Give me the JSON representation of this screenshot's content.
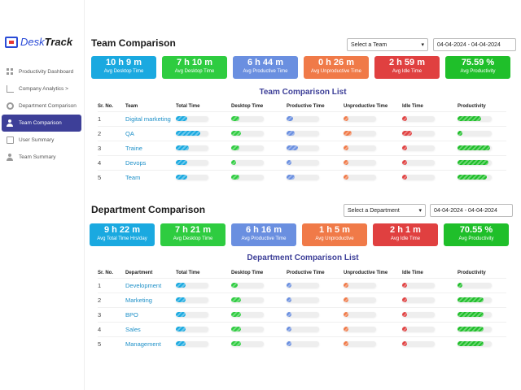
{
  "colors": {
    "blue": "#1aa9e0",
    "green": "#2ecc40",
    "periwinkle": "#6a8fe0",
    "orange": "#f07a48",
    "red": "#e04040",
    "lime": "#1fbf2a",
    "accent": "#3d3f98"
  },
  "sidebar": {
    "logo": {
      "brand": "Desk",
      "brand_bold": "Track"
    },
    "items": [
      {
        "label": "Productivity Dashboard",
        "icon": "grid-icon"
      },
      {
        "label": "Company Analytics >",
        "icon": "bar-chart-icon"
      },
      {
        "label": "Department Comparison",
        "icon": "gear-icon"
      },
      {
        "label": "Team Comparison",
        "icon": "team-icon",
        "active": true
      },
      {
        "label": "User Summary",
        "icon": "document-icon"
      },
      {
        "label": "Team Summary",
        "icon": "team-icon"
      }
    ]
  },
  "team": {
    "title": "Team Comparison",
    "select": "Select a Team",
    "date": "04-04-2024 - 04-04-2024",
    "cards": [
      {
        "value": "10 h 9 m",
        "label": "Avg Desktop Time"
      },
      {
        "value": "7 h 10 m",
        "label": "Avg Desktop Time"
      },
      {
        "value": "6 h 44 m",
        "label": "Avg Productive Time"
      },
      {
        "value": "0 h 26 m",
        "label": "Avg Unproductive Time"
      },
      {
        "value": "2 h 59 m",
        "label": "Avg Idle Time"
      },
      {
        "value": "75.59 %",
        "label": "Avg Productivity"
      }
    ],
    "list_title": "Team Comparison List",
    "headers": [
      "Sr. No.",
      "Team",
      "Total Time",
      "Desktop Time",
      "Productive Time",
      "Unproductive Time",
      "Idle Time",
      "Productivity"
    ],
    "rows": [
      {
        "no": "1",
        "name": "Digital marketing",
        "total": 0.35,
        "desktop": 0.25,
        "productive": 0.2,
        "unproductive": 0.02,
        "idle": 0.12,
        "productivity": 0.7
      },
      {
        "no": "2",
        "name": "QA",
        "total": 0.75,
        "desktop": 0.3,
        "productive": 0.25,
        "unproductive": 0.25,
        "idle": 0.3,
        "productivity": 0.05
      },
      {
        "no": "3",
        "name": "Traine",
        "total": 0.4,
        "desktop": 0.25,
        "productive": 0.35,
        "unproductive": 0.1,
        "idle": 0.1,
        "productivity": 0.95
      },
      {
        "no": "4",
        "name": "Devops",
        "total": 0.35,
        "desktop": 0.05,
        "productive": 0.1,
        "unproductive": 0.05,
        "idle": 0.05,
        "productivity": 0.9
      },
      {
        "no": "5",
        "name": "Team",
        "total": 0.35,
        "desktop": 0.25,
        "productive": 0.25,
        "unproductive": 0.03,
        "idle": 0.05,
        "productivity": 0.85
      }
    ]
  },
  "dept": {
    "title": "Department Comparison",
    "select": "Select a Department",
    "date": "04-04-2024 - 04-04-2024",
    "cards": [
      {
        "value": "9 h 22 m",
        "label": "Avg Total Time Hrs/day"
      },
      {
        "value": "7 h 21 m",
        "label": "Avg Desktop Time"
      },
      {
        "value": "6 h 16 m",
        "label": "Avg Productive Time"
      },
      {
        "value": "1 h 5 m",
        "label": "Avg Unproductive"
      },
      {
        "value": "2 h 1 m",
        "label": "Avg Idle Time"
      },
      {
        "value": "70.55 %",
        "label": "Avg Productivity"
      }
    ],
    "list_title": "Department Comparison List",
    "headers": [
      "Sr. No.",
      "Department",
      "Total Time",
      "Desktop Time",
      "Productive Time",
      "Unproductive Time",
      "Idle Time",
      "Productivity"
    ],
    "rows": [
      {
        "no": "1",
        "name": "Development",
        "total": 0.3,
        "desktop": 0.2,
        "productive": 0.05,
        "unproductive": 0.15,
        "idle": 0.05,
        "productivity": 0.05
      },
      {
        "no": "2",
        "name": "Marketing",
        "total": 0.3,
        "desktop": 0.3,
        "productive": 0.05,
        "unproductive": 0.05,
        "idle": 0.05,
        "productivity": 0.75
      },
      {
        "no": "3",
        "name": "BPO",
        "total": 0.3,
        "desktop": 0.3,
        "productive": 0.1,
        "unproductive": 0.15,
        "idle": 0.05,
        "productivity": 0.75
      },
      {
        "no": "4",
        "name": "Sales",
        "total": 0.3,
        "desktop": 0.3,
        "productive": 0.15,
        "unproductive": 0.05,
        "idle": 0.05,
        "productivity": 0.75
      },
      {
        "no": "5",
        "name": "Management",
        "total": 0.3,
        "desktop": 0.3,
        "productive": 0.05,
        "unproductive": 0.15,
        "idle": 0.05,
        "productivity": 0.75
      }
    ]
  }
}
